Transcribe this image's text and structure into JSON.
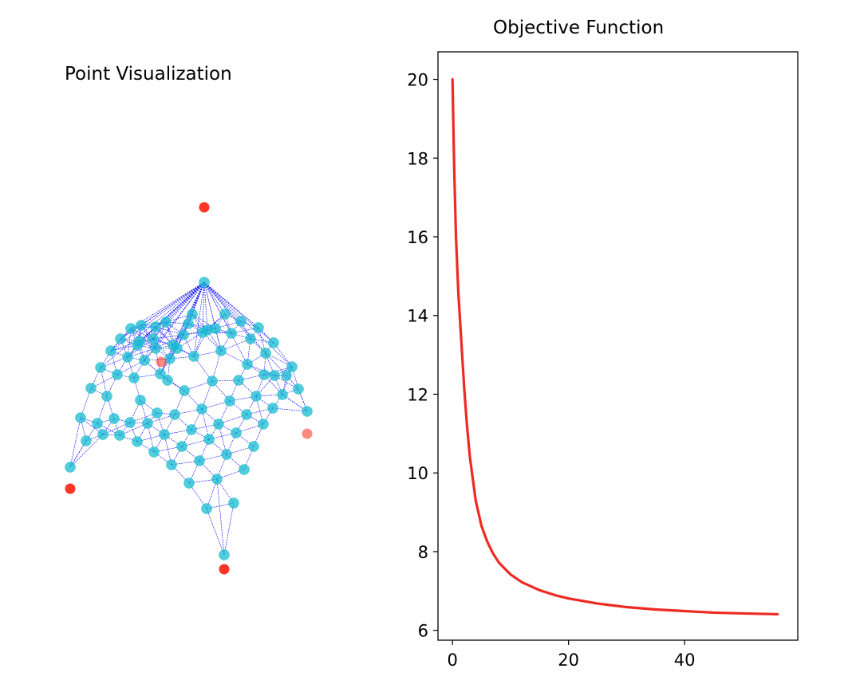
{
  "figure": {
    "left_panel_title": "Point Visualization",
    "right_panel_title": "Objective Function"
  },
  "colors": {
    "mesh_point": "#17becf",
    "mesh_line": "#0000ff",
    "anchor_point": "#ff2a1a",
    "curve": "#ee2a22"
  },
  "chart_data": [
    {
      "type": "scatter",
      "title": "Point Visualization",
      "axes_visible": false,
      "description_of_series": [
        "mesh points",
        "anchor points"
      ],
      "series": [
        {
          "name": "",
          "color": "#17becf",
          "points": [
            [
              256,
              354
            ],
            [
              88,
              586
            ],
            [
              281,
              696
            ],
            [
              385,
              516
            ],
            [
              259,
              638
            ],
            [
              293,
              631
            ],
            [
              237,
              606
            ],
            [
              272,
              601
            ],
            [
              306,
              589
            ],
            [
              215,
              583
            ],
            [
              250,
              578
            ],
            [
              284,
              570
            ],
            [
              318,
              560
            ],
            [
              193,
              567
            ],
            [
              228,
              560
            ],
            [
              262,
              551
            ],
            [
              296,
              543
            ],
            [
              330,
              532
            ],
            [
              172,
              554
            ],
            [
              206,
              545
            ],
            [
              240,
              539
            ],
            [
              274,
              532
            ],
            [
              309,
              520
            ],
            [
              342,
              512
            ],
            [
              150,
              546
            ],
            [
              185,
              531
            ],
            [
              219,
              520
            ],
            [
              253,
              513
            ],
            [
              288,
              503
            ],
            [
              321,
              497
            ],
            [
              354,
              495
            ],
            [
              129,
              545
            ],
            [
              163,
              530
            ],
            [
              197,
              518
            ],
            [
              231,
              490
            ],
            [
              266,
              478
            ],
            [
              299,
              477
            ],
            [
              331,
              470
            ],
            [
              366,
              460
            ],
            [
              108,
              553
            ],
            [
              122,
              531
            ],
            [
              143,
              525
            ],
            [
              176,
              502
            ],
            [
              210,
              477
            ],
            [
              243,
              447
            ],
            [
              277,
              440
            ],
            [
              310,
              457
            ],
            [
              343,
              430
            ],
            [
              101,
              524
            ],
            [
              134,
              497
            ],
            [
              168,
              474
            ],
            [
              201,
              469
            ],
            [
              236,
              406
            ],
            [
              270,
              412
            ],
            [
              302,
              403
            ],
            [
              324,
              411
            ],
            [
              114,
              487
            ],
            [
              147,
              470
            ],
            [
              181,
              452
            ],
            [
              213,
              450
            ],
            [
              175,
              428
            ],
            [
              208,
              404
            ],
            [
              192,
              425
            ],
            [
              126,
              461
            ],
            [
              160,
              448
            ],
            [
              195,
              437
            ],
            [
              217,
              433
            ],
            [
              241,
              394
            ],
            [
              282,
              394
            ],
            [
              139,
              440
            ],
            [
              172,
              433
            ],
            [
              151,
              425
            ],
            [
              164,
              412
            ],
            [
              177,
              408
            ],
            [
              195,
              410
            ],
            [
              230,
              420
            ],
            [
              254,
              417
            ],
            [
              222,
              437
            ],
            [
              260,
              414
            ],
            [
              290,
              418
            ],
            [
              314,
              425
            ],
            [
              333,
              443
            ],
            [
              344,
              471
            ],
            [
              359,
              471
            ],
            [
              374,
              488
            ]
          ]
        },
        {
          "name": "",
          "color": "#ff2a1a",
          "points": [
            [
              256,
              260
            ],
            [
              88,
              613
            ],
            [
              281,
              714
            ],
            [
              385,
              544
            ],
            [
              202,
              454
            ]
          ]
        }
      ]
    },
    {
      "type": "line",
      "title": "Objective Function",
      "xlabel": "",
      "ylabel": "",
      "xlim": [
        -2.5,
        59.5
      ],
      "ylim": [
        5.75,
        20.7
      ],
      "xticks": [
        0,
        20,
        40
      ],
      "yticks": [
        6,
        8,
        10,
        12,
        14,
        16,
        18,
        20
      ],
      "series": [
        {
          "name": "",
          "color": "#ee2a22",
          "x": [
            0,
            0.3,
            0.6,
            1,
            1.5,
            2,
            2.5,
            3,
            4,
            5,
            6,
            7,
            8,
            10,
            12,
            15,
            18,
            20,
            25,
            30,
            35,
            40,
            45,
            50,
            56
          ],
          "y": [
            20.0,
            17.7,
            16.0,
            14.6,
            13.4,
            12.2,
            11.2,
            10.4,
            9.3,
            8.65,
            8.25,
            7.95,
            7.72,
            7.42,
            7.22,
            7.02,
            6.88,
            6.81,
            6.68,
            6.59,
            6.53,
            6.49,
            6.45,
            6.43,
            6.41
          ]
        }
      ]
    }
  ]
}
